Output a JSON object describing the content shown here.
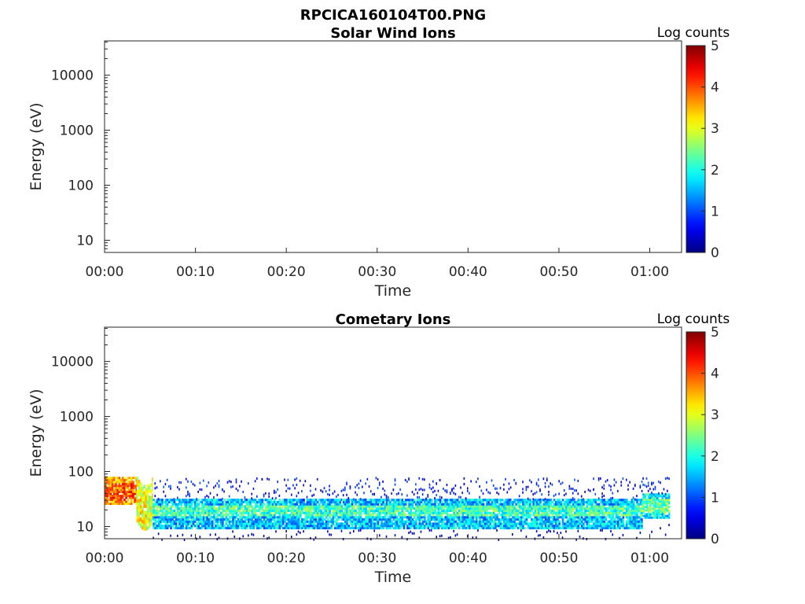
{
  "figure_title": "RPCICA160104T00.PNG",
  "chart_data": [
    {
      "type": "heatmap",
      "title": "Solar Wind Ions",
      "xlabel": "Time",
      "ylabel": "Energy (eV)",
      "x_ticks": [
        "00:00",
        "00:10",
        "00:20",
        "00:30",
        "00:40",
        "00:50",
        "01:00"
      ],
      "x_tick_minutes": [
        0,
        10,
        20,
        30,
        40,
        50,
        60
      ],
      "xlim_minutes": [
        0,
        63.5
      ],
      "y_scale": "log",
      "y_ticks": [
        "10",
        "100",
        "1000",
        "10000"
      ],
      "y_tick_values": [
        10,
        100,
        1000,
        10000
      ],
      "ylim": [
        6,
        42000
      ],
      "colorbar": {
        "label": "Log counts",
        "ticks": [
          "0",
          "1",
          "2",
          "3",
          "4",
          "5"
        ],
        "range": [
          0,
          5
        ],
        "colormap": "jet"
      },
      "cells": []
    },
    {
      "type": "heatmap",
      "title": "Cometary Ions",
      "xlabel": "Time",
      "ylabel": "Energy (eV)",
      "x_ticks": [
        "00:00",
        "00:10",
        "00:20",
        "00:30",
        "00:40",
        "00:50",
        "01:00"
      ],
      "x_tick_minutes": [
        0,
        10,
        20,
        30,
        40,
        50,
        60
      ],
      "xlim_minutes": [
        0,
        63.5
      ],
      "y_scale": "log",
      "y_ticks": [
        "10",
        "100",
        "1000",
        "10000"
      ],
      "y_tick_values": [
        10,
        100,
        1000,
        10000
      ],
      "ylim": [
        6,
        42000
      ],
      "colorbar": {
        "label": "Log counts",
        "ticks": [
          "0",
          "1",
          "2",
          "3",
          "4",
          "5"
        ],
        "range": [
          0,
          5
        ],
        "colormap": "jet"
      },
      "segments": [
        {
          "t_start": 0,
          "t_end": 3.5,
          "e_low": 25,
          "e_high": 80,
          "log_counts": 3.6,
          "core_low": 30,
          "core_high": 60,
          "core_log_counts": 3.9
        },
        {
          "t_start": 3.5,
          "t_end": 5.3,
          "e_low": 12,
          "e_high": 80,
          "log_counts": 3.0
        },
        {
          "t_start": 5.3,
          "t_end": 59.2,
          "e_low": 9,
          "e_high": 32,
          "log_counts": 1.6,
          "core_low": 15,
          "core_high": 24,
          "core_log_counts": 2.2
        },
        {
          "t_start": 59.2,
          "t_end": 62.2,
          "e_low": 14,
          "e_high": 40,
          "log_counts": 1.8,
          "core_low": 18,
          "core_high": 32,
          "core_log_counts": 2.4
        }
      ],
      "sparse_upper_bound_eV": 80,
      "sparse_lower_bound_eV": 6
    }
  ]
}
